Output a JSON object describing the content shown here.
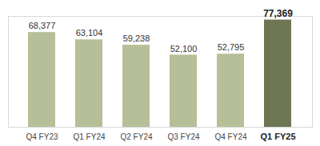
{
  "chart_data": {
    "type": "bar",
    "categories": [
      "Q4 FY23",
      "Q1 FY24",
      "Q2 FY24",
      "Q3 FY24",
      "Q4 FY24",
      "Q1 FY25"
    ],
    "values": [
      68377,
      63104,
      59238,
      52100,
      52795,
      77369
    ],
    "value_labels": [
      "68,377",
      "63,104",
      "59,238",
      "52,100",
      "52,795",
      "77,369"
    ],
    "colors": [
      "#b7bf98",
      "#b7bf98",
      "#b7bf98",
      "#b7bf98",
      "#b7bf98",
      "#6e7653"
    ],
    "ylim": [
      0,
      80000
    ],
    "yticks": [],
    "grid": false,
    "data_labels": true,
    "tick_labels": "x"
  }
}
